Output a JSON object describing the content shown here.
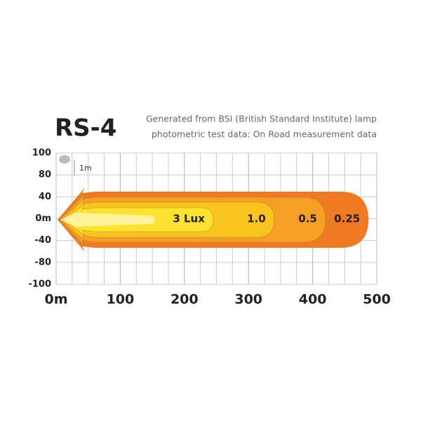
{
  "chart_data": {
    "type": "beam-pattern",
    "title": "RS-4",
    "subtitle": [
      "Generated from BSI (British Standard Institute) lamp",
      "photometric test data: On Road measurement data"
    ],
    "scale_note": "1m",
    "xlim": [
      0,
      500
    ],
    "xticks": [
      {
        "value": 0,
        "label": "0m"
      },
      100,
      200,
      300,
      400,
      500
    ],
    "y_labels": [
      "100",
      "80",
      "40",
      "0m",
      "-40",
      "-80",
      "-100"
    ],
    "grid": true,
    "zones": [
      {
        "name": "0.25",
        "reach": 487,
        "color": "#f07a22"
      },
      {
        "name": "0.5",
        "reach": 420,
        "color": "#f5a024"
      },
      {
        "name": "1.0",
        "reach": 340,
        "color": "#f9c41e"
      },
      {
        "name": "3 Lux",
        "reach": 245,
        "color": "#fde22e"
      }
    ]
  }
}
